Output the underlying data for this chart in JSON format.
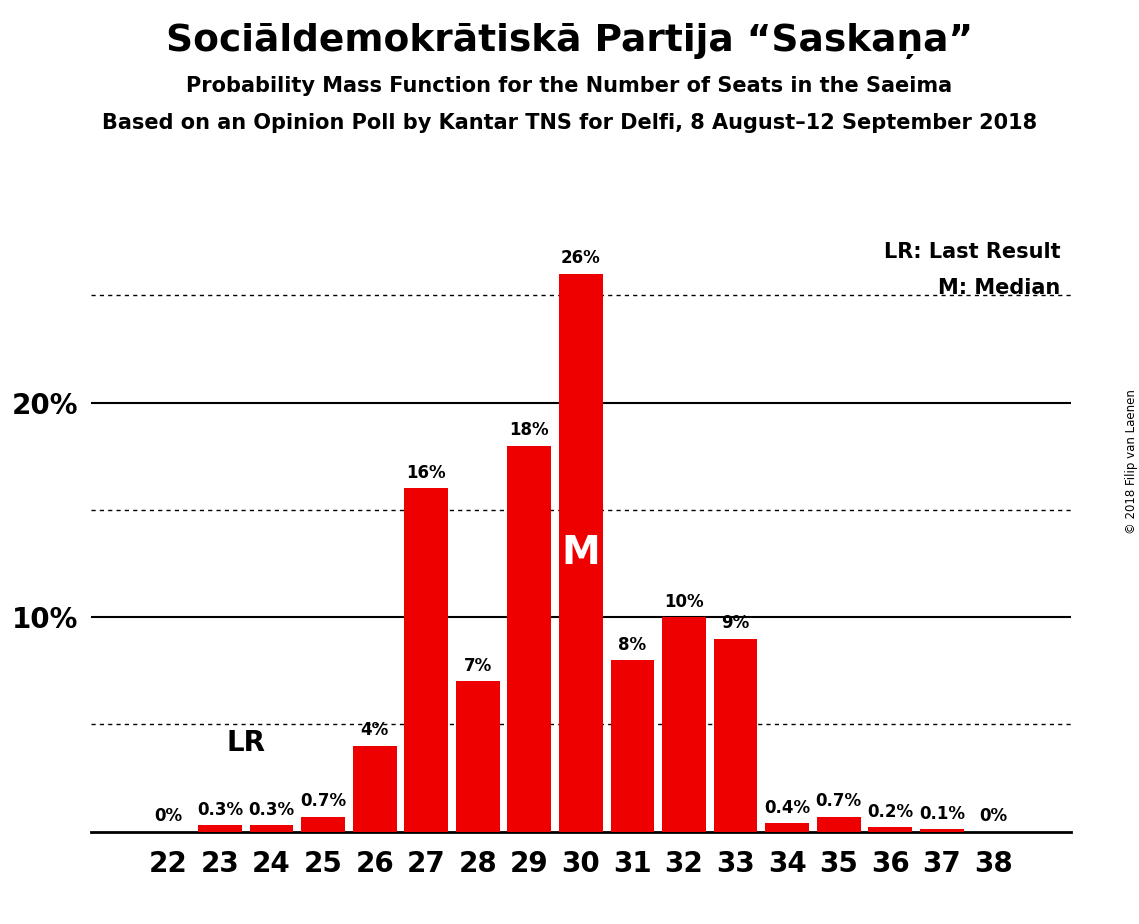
{
  "title": "Sociāldemokrātiskā Partija “Saskaņa”",
  "subtitle1": "Probability Mass Function for the Number of Seats in the Saeima",
  "subtitle2": "Based on an Opinion Poll by Kantar TNS for Delfi, 8 August–12 September 2018",
  "copyright": "© 2018 Filip van Laenen",
  "seats": [
    22,
    23,
    24,
    25,
    26,
    27,
    28,
    29,
    30,
    31,
    32,
    33,
    34,
    35,
    36,
    37,
    38
  ],
  "probabilities": [
    0.0,
    0.3,
    0.3,
    0.7,
    4.0,
    16.0,
    7.0,
    18.0,
    26.0,
    8.0,
    10.0,
    9.0,
    0.4,
    0.7,
    0.2,
    0.1,
    0.0
  ],
  "bar_color": "#ee0000",
  "last_result_seat": 24,
  "median_seat": 30,
  "lr_label": "LR",
  "m_label": "M",
  "legend_lr": "LR: Last Result",
  "legend_m": "M: Median",
  "ylim": [
    0,
    28
  ],
  "dotted_ticks": [
    5,
    15,
    25
  ],
  "solid_ticks": [
    10,
    20
  ],
  "background_color": "#ffffff"
}
